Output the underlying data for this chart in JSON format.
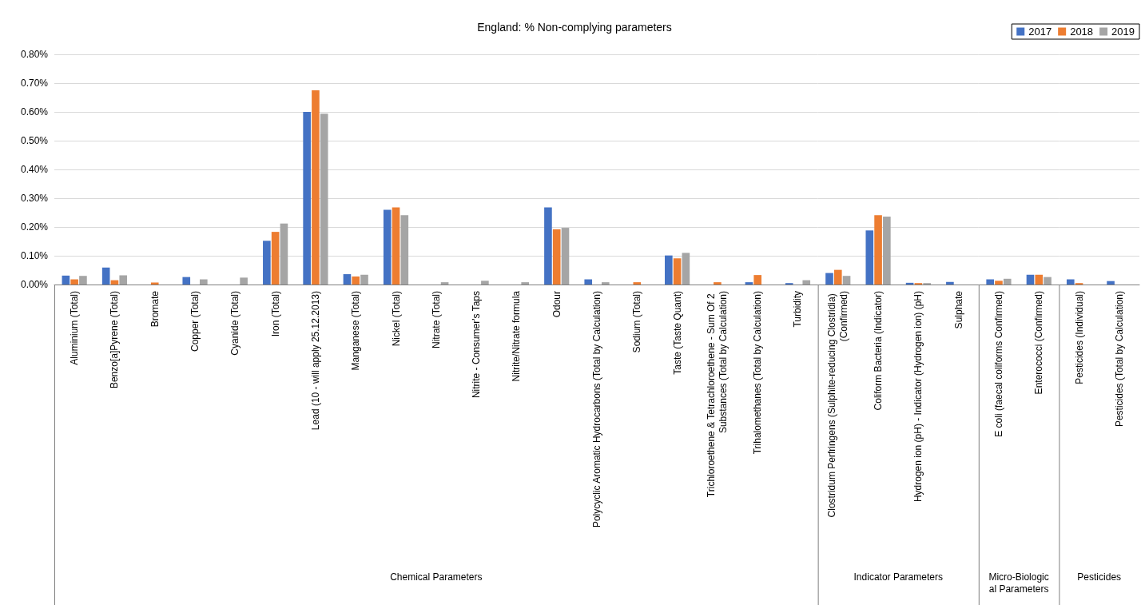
{
  "chart_data": [
    {
      "type": "bar",
      "title": "England: % Non-complying parameters",
      "xlabel": "Chemical Parameters",
      "categories": [
        "Aluminium (Total)",
        "Benzo[a]Pyrene (Total)",
        "Bromate",
        "Copper (Total)",
        "Cyanide (Total)",
        "Iron (Total)",
        "Lead (10 - will apply 25.12.2013)",
        "Manganese (Total)",
        "Nickel (Total)",
        "Nitrate (Total)",
        "Nitrite - Consumer's Taps",
        "Nitrite/Nitrate formula",
        "Odour",
        "Polycyclic Aromatic Hydrocarbons (Total by Calculation)",
        "Sodium (Total)",
        "Taste (Taste Quant)",
        "Trichloroethene & Tetrachloroethene - Sum Of 2 Substances (Total by Calculation)",
        "Trihalomethanes (Total by Calculation)",
        "Turbidity"
      ],
      "series": [
        {
          "name": "2017",
          "color": "#4472c4",
          "values": [
            0.031,
            0.059,
            null,
            0.026,
            null,
            0.152,
            0.6,
            0.036,
            0.26,
            null,
            null,
            null,
            0.268,
            0.018,
            null,
            0.101,
            null,
            0.008,
            0.005
          ]
        },
        {
          "name": "2018",
          "color": "#ed7d31",
          "values": [
            0.018,
            0.015,
            0.007,
            null,
            null,
            0.183,
            0.675,
            0.028,
            0.268,
            null,
            null,
            null,
            0.192,
            null,
            0.008,
            0.091,
            0.008,
            0.033,
            null
          ]
        },
        {
          "name": "2019",
          "color": "#a5a5a5",
          "values": [
            0.03,
            0.032,
            null,
            0.018,
            0.024,
            0.212,
            0.594,
            0.034,
            0.241,
            0.008,
            0.013,
            0.008,
            0.197,
            0.008,
            null,
            0.11,
            null,
            null,
            0.015
          ]
        }
      ],
      "ylim": [
        0,
        0.8
      ],
      "yticks": [
        {
          "value": 0,
          "label": "0.00%"
        },
        {
          "value": 0.1,
          "label": "0.10%"
        },
        {
          "value": 0.2,
          "label": "0.20%"
        },
        {
          "value": 0.3,
          "label": "0.30%"
        },
        {
          "value": 0.4,
          "label": "0.40%"
        },
        {
          "value": 0.5,
          "label": "0.50%"
        },
        {
          "value": 0.6,
          "label": "0.60%"
        },
        {
          "value": 0.7,
          "label": "0.70%"
        },
        {
          "value": 0.8,
          "label": "0.80%"
        }
      ],
      "grid": "y",
      "legend": "top right"
    },
    {
      "type": "bar",
      "xlabel": "Indicator Parameters",
      "categories": [
        "Clostridum Perfringens (Sulphite-reducing Clostridia) (Confirmed)",
        "Coliform Bacteria (Indicator)",
        "Hydrogen ion (pH) - Indicator (Hydrogen ion) (pH)",
        "Sulphate"
      ],
      "series": [
        {
          "color": "#4472c4",
          "values": [
            0.04,
            0.188,
            0.006,
            0.009
          ]
        },
        {
          "color": "#ed7d31",
          "values": [
            0.051,
            0.241,
            0.005,
            null
          ]
        },
        {
          "color": "#a5a5a5",
          "values": [
            0.03,
            0.236,
            0.005,
            null
          ]
        }
      ],
      "ylim": [
        0,
        0.8
      ],
      "grid": "y",
      "tick_labels": "x"
    },
    {
      "type": "bar",
      "xlabel": "Micro-Biological Parameters",
      "categories": [
        "E coli (faecal coliforms Confirmed)",
        "Enterococci (Confirmed)"
      ],
      "series": [
        {
          "color": "#4472c4",
          "values": [
            0.018,
            0.034
          ]
        },
        {
          "color": "#ed7d31",
          "values": [
            0.013,
            0.034
          ]
        },
        {
          "color": "#a5a5a5",
          "values": [
            0.02,
            0.026
          ]
        }
      ],
      "ylim": [
        0,
        0.8
      ],
      "grid": "y",
      "tick_labels": "x"
    },
    {
      "type": "bar",
      "xlabel": "Pesticides",
      "categories": [
        "Pesticides (Individual)",
        "Pesticides (Total by Calculation)"
      ],
      "series": [
        {
          "color": "#4472c4",
          "values": [
            0.018,
            0.012
          ]
        },
        {
          "color": "#ed7d31",
          "values": [
            0.005,
            null
          ]
        },
        {
          "color": "#a5a5a5",
          "values": [
            null,
            null
          ]
        }
      ],
      "ylim": [
        0,
        0.8
      ],
      "grid": "y",
      "tick_labels": "x"
    }
  ]
}
